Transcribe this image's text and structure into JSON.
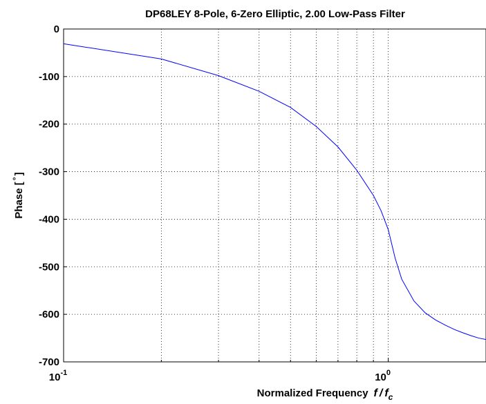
{
  "chart_data": {
    "type": "line",
    "title": "DP68LEY 8-Pole, 6-Zero Elliptic, 2.00 Low-Pass Filter",
    "xlabel": {
      "text": "Normalized Frequency",
      "numerator": "f",
      "slash": "/",
      "denominator": "f",
      "subscript": "c"
    },
    "ylabel": {
      "text": "Phase [",
      "degree": "°",
      "close": "]"
    },
    "x_scale": "log",
    "xlim": [
      0.1,
      2.0
    ],
    "ylim": [
      -700,
      0
    ],
    "grid": true,
    "x_major_ticks": [
      {
        "value": 0.1,
        "base": "10",
        "exponent": "-1"
      },
      {
        "value": 1.0,
        "base": "10",
        "exponent": "0"
      }
    ],
    "x_minor_ticks": [
      0.2,
      0.3,
      0.4,
      0.5,
      0.6,
      0.7,
      0.8,
      0.9,
      2.0
    ],
    "y_ticks": [
      {
        "value": 0,
        "label": "0"
      },
      {
        "value": -100,
        "label": "-100"
      },
      {
        "value": -200,
        "label": "-200"
      },
      {
        "value": -300,
        "label": "-300"
      },
      {
        "value": -400,
        "label": "-400"
      },
      {
        "value": -500,
        "label": "-500"
      },
      {
        "value": -600,
        "label": "-600"
      },
      {
        "value": -700,
        "label": "-700"
      }
    ],
    "series": [
      {
        "color": "#0000ff",
        "x": [
          0.1,
          0.2,
          0.3,
          0.4,
          0.5,
          0.6,
          0.7,
          0.8,
          0.9,
          0.95,
          1.0,
          1.05,
          1.1,
          1.2,
          1.3,
          1.4,
          1.5,
          1.6,
          1.7,
          1.8,
          1.9,
          2.0
        ],
        "y": [
          -31,
          -63,
          -98,
          -131,
          -165,
          -205,
          -248,
          -297,
          -350,
          -382,
          -422,
          -482,
          -526,
          -572,
          -597,
          -612,
          -623,
          -632,
          -639,
          -645,
          -650,
          -653
        ]
      }
    ]
  }
}
